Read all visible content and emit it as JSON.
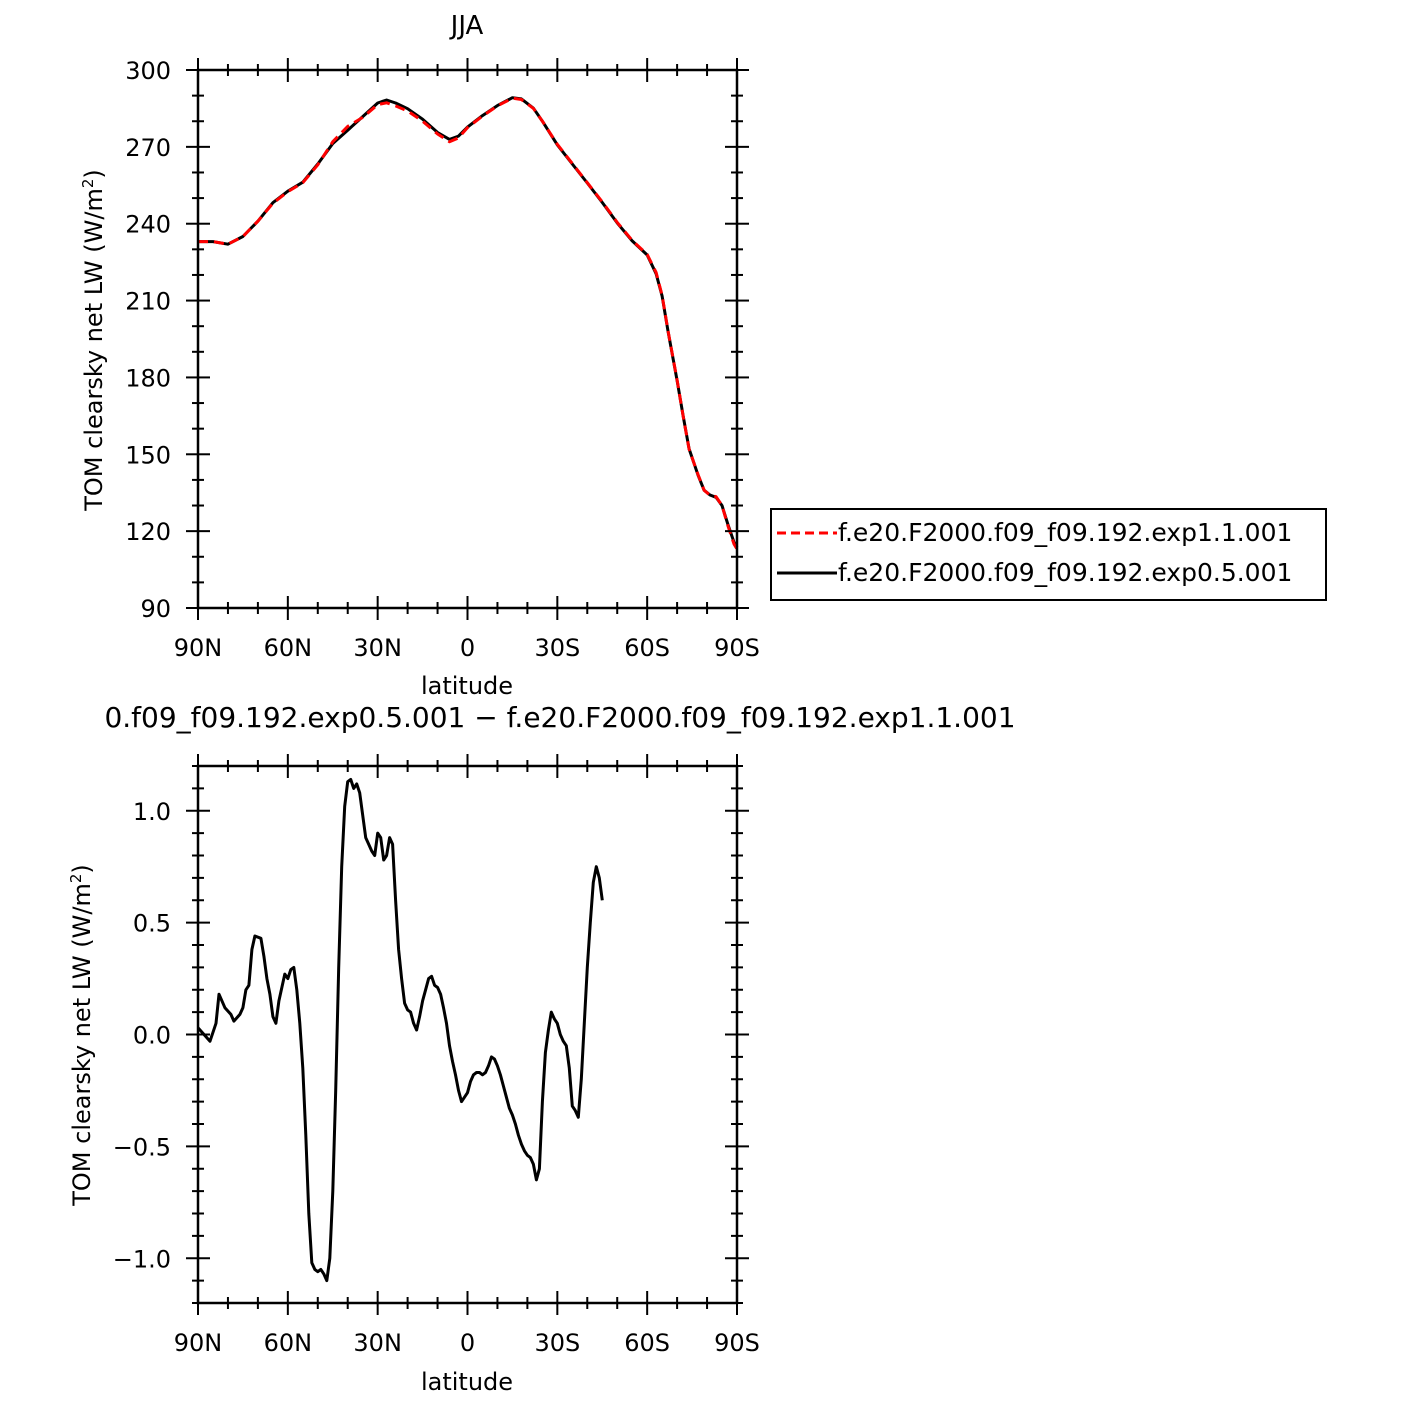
{
  "chart_data": [
    {
      "type": "line",
      "title": "JJA",
      "xlabel": "latitude",
      "ylabel": "TOM clearsky net LW (W/m²)",
      "ylabel_main": "TOM clearsky net LW (W/m",
      "ylabel_sup": "2",
      "ylabel_end": ")",
      "xlim": [
        90,
        -90
      ],
      "ylim": [
        90,
        300
      ],
      "x_ticks": [
        90,
        60,
        30,
        0,
        -30,
        -60,
        -90
      ],
      "x_tick_labels": [
        "90N",
        "60N",
        "30N",
        "0",
        "30S",
        "60S",
        "90S"
      ],
      "y_ticks": [
        90,
        120,
        150,
        180,
        210,
        240,
        270,
        300
      ],
      "y_tick_labels": [
        "90",
        "120",
        "150",
        "180",
        "210",
        "240",
        "270",
        "300"
      ],
      "legend": "right, outside",
      "series": [
        {
          "name": "f.e20.F2000.f09_f09.192.exp1.1.001",
          "color": "#ff0000",
          "style": "dashed",
          "points": [
            [
              90,
              233
            ],
            [
              85,
              233
            ],
            [
              80,
              232
            ],
            [
              75,
              235
            ],
            [
              70,
              241
            ],
            [
              65,
              248
            ],
            [
              60,
              252.5
            ],
            [
              55,
              256
            ],
            [
              50,
              263
            ],
            [
              45,
              272
            ],
            [
              40,
              278
            ],
            [
              35,
              281.5
            ],
            [
              30,
              286.5
            ],
            [
              27,
              287.2
            ],
            [
              24,
              286
            ],
            [
              20,
              284
            ],
            [
              15,
              280
            ],
            [
              10,
              275
            ],
            [
              6,
              272
            ],
            [
              3,
              273.5
            ],
            [
              0,
              277.5
            ],
            [
              -5,
              282
            ],
            [
              -10,
              286
            ],
            [
              -15,
              289
            ],
            [
              -18,
              288.5
            ],
            [
              -22,
              285
            ],
            [
              -25,
              280
            ],
            [
              -30,
              271
            ],
            [
              -35,
              263.5
            ],
            [
              -40,
              256
            ],
            [
              -45,
              248.5
            ],
            [
              -50,
              240.5
            ],
            [
              -55,
              233.5
            ],
            [
              -60,
              228
            ],
            [
              -63,
              221
            ],
            [
              -65,
              212
            ],
            [
              -67,
              198
            ],
            [
              -70,
              179
            ],
            [
              -72,
              165
            ],
            [
              -74,
              152
            ],
            [
              -77,
              142
            ],
            [
              -79,
              136
            ],
            [
              -81,
              134
            ],
            [
              -83,
              133.5
            ],
            [
              -85,
              130
            ],
            [
              -87,
              122
            ],
            [
              -89,
              115
            ],
            [
              -90,
              113
            ]
          ]
        },
        {
          "name": "f.e20.F2000.f09_f09.192.exp0.5.001",
          "color": "#000000",
          "style": "solid",
          "points": [
            [
              90,
              233
            ],
            [
              85,
              233
            ],
            [
              80,
              232
            ],
            [
              75,
              235
            ],
            [
              70,
              241
            ],
            [
              65,
              248.2
            ],
            [
              60,
              252.7
            ],
            [
              55,
              256.2
            ],
            [
              50,
              263.3
            ],
            [
              45,
              271.3
            ],
            [
              40,
              276.5
            ],
            [
              35,
              281.8
            ],
            [
              30,
              287.1
            ],
            [
              27,
              288.3
            ],
            [
              24,
              287.1
            ],
            [
              20,
              284.9
            ],
            [
              15,
              280.8
            ],
            [
              10,
              275.6
            ],
            [
              6,
              272.9
            ],
            [
              3,
              274.2
            ],
            [
              0,
              277.7
            ],
            [
              -5,
              282.2
            ],
            [
              -10,
              286.1
            ],
            [
              -15,
              289.2
            ],
            [
              -18,
              288.7
            ],
            [
              -22,
              285.1
            ],
            [
              -25,
              280
            ],
            [
              -30,
              270.8
            ],
            [
              -35,
              263.3
            ],
            [
              -40,
              255.9
            ],
            [
              -45,
              248.3
            ],
            [
              -50,
              240.3
            ],
            [
              -55,
              233.3
            ],
            [
              -60,
              227.8
            ],
            [
              -63,
              220.5
            ],
            [
              -65,
              211.8
            ],
            [
              -67,
              197.9
            ],
            [
              -70,
              178.8
            ],
            [
              -72,
              165.1
            ],
            [
              -74,
              152.1
            ],
            [
              -77,
              141.8
            ],
            [
              -79,
              136
            ],
            [
              -81,
              134.1
            ],
            [
              -83,
              133.2
            ],
            [
              -85,
              130
            ],
            [
              -87,
              122.5
            ],
            [
              -89,
              115.7
            ],
            [
              -90,
              113.7
            ]
          ]
        }
      ]
    },
    {
      "type": "line",
      "title": "0.f09_f09.192.exp0.5.001  −  f.e20.F2000.f09_f09.192.exp1.1.001",
      "xlabel": "latitude",
      "ylabel": "TOM clearsky net LW (W/m²)",
      "ylabel_main": "TOM clearsky net LW (W/m",
      "ylabel_sup": "2",
      "ylabel_end": ")",
      "xlim": [
        90,
        -90
      ],
      "ylim": [
        -1.2,
        1.2
      ],
      "x_ticks": [
        90,
        60,
        30,
        0,
        -30,
        -60,
        -90
      ],
      "x_tick_labels": [
        "90N",
        "60N",
        "30N",
        "0",
        "30S",
        "60S",
        "90S"
      ],
      "y_ticks": [
        -1.0,
        -0.5,
        0.0,
        0.5,
        1.0
      ],
      "y_tick_labels": [
        "−1.0",
        "−0.5",
        "0.0",
        "0.5",
        "1.0"
      ],
      "series": [
        {
          "name": "",
          "color": "#000000",
          "style": "solid",
          "points": [
            [
              90,
              0.03
            ],
            [
              88,
              0.0
            ],
            [
              86,
              -0.03
            ],
            [
              84,
              0.05
            ],
            [
              83,
              0.18
            ],
            [
              81,
              0.12
            ],
            [
              79,
              0.09
            ],
            [
              78,
              0.06
            ],
            [
              76,
              0.09
            ],
            [
              75,
              0.12
            ],
            [
              74,
              0.2
            ],
            [
              73,
              0.22
            ],
            [
              72,
              0.38
            ],
            [
              71,
              0.44
            ],
            [
              69,
              0.43
            ],
            [
              68,
              0.35
            ],
            [
              67,
              0.25
            ],
            [
              66,
              0.18
            ],
            [
              65,
              0.08
            ],
            [
              64,
              0.05
            ],
            [
              63,
              0.15
            ],
            [
              61,
              0.27
            ],
            [
              60,
              0.25
            ],
            [
              59,
              0.29
            ],
            [
              58,
              0.3
            ],
            [
              57,
              0.2
            ],
            [
              56,
              0.05
            ],
            [
              55,
              -0.15
            ],
            [
              54,
              -0.45
            ],
            [
              53,
              -0.8
            ],
            [
              52,
              -1.02
            ],
            [
              51,
              -1.05
            ],
            [
              50,
              -1.06
            ],
            [
              49,
              -1.05
            ],
            [
              48,
              -1.07
            ],
            [
              47,
              -1.1
            ],
            [
              46,
              -1.0
            ],
            [
              45,
              -0.7
            ],
            [
              44,
              -0.25
            ],
            [
              43,
              0.3
            ],
            [
              42,
              0.75
            ],
            [
              41,
              1.02
            ],
            [
              40,
              1.13
            ],
            [
              39,
              1.14
            ],
            [
              38,
              1.1
            ],
            [
              37,
              1.12
            ],
            [
              36,
              1.08
            ],
            [
              35,
              0.98
            ],
            [
              34,
              0.88
            ],
            [
              33,
              0.85
            ],
            [
              32,
              0.82
            ],
            [
              31,
              0.8
            ],
            [
              30,
              0.9
            ],
            [
              29,
              0.88
            ],
            [
              28,
              0.78
            ],
            [
              27,
              0.8
            ],
            [
              26,
              0.88
            ],
            [
              25,
              0.85
            ],
            [
              24,
              0.6
            ],
            [
              23,
              0.38
            ],
            [
              22,
              0.25
            ],
            [
              21,
              0.14
            ],
            [
              20,
              0.11
            ],
            [
              19,
              0.1
            ],
            [
              18,
              0.05
            ],
            [
              17,
              0.02
            ],
            [
              16,
              0.08
            ],
            [
              15,
              0.15
            ],
            [
              14,
              0.2
            ],
            [
              13,
              0.25
            ],
            [
              12,
              0.26
            ],
            [
              11,
              0.22
            ],
            [
              10,
              0.21
            ],
            [
              9,
              0.18
            ],
            [
              8,
              0.12
            ],
            [
              7,
              0.05
            ],
            [
              6,
              -0.05
            ],
            [
              5,
              -0.12
            ],
            [
              4,
              -0.18
            ],
            [
              3,
              -0.25
            ],
            [
              2,
              -0.3
            ],
            [
              1,
              -0.28
            ],
            [
              0,
              -0.26
            ],
            [
              -1,
              -0.21
            ],
            [
              -2,
              -0.18
            ],
            [
              -3,
              -0.17
            ],
            [
              -4,
              -0.17
            ],
            [
              -5,
              -0.18
            ],
            [
              -6,
              -0.17
            ],
            [
              -7,
              -0.14
            ],
            [
              -8,
              -0.1
            ],
            [
              -9,
              -0.11
            ],
            [
              -10,
              -0.14
            ],
            [
              -11,
              -0.18
            ],
            [
              -12,
              -0.23
            ],
            [
              -13,
              -0.28
            ],
            [
              -14,
              -0.33
            ],
            [
              -15,
              -0.36
            ],
            [
              -16,
              -0.4
            ],
            [
              -17,
              -0.45
            ],
            [
              -18,
              -0.49
            ],
            [
              -19,
              -0.52
            ],
            [
              -20,
              -0.54
            ],
            [
              -21,
              -0.55
            ],
            [
              -22,
              -0.58
            ],
            [
              -23,
              -0.65
            ],
            [
              -24,
              -0.6
            ],
            [
              -25,
              -0.3
            ],
            [
              -26,
              -0.08
            ],
            [
              -27,
              0.02
            ],
            [
              -28,
              0.1
            ],
            [
              -29,
              0.07
            ],
            [
              -30,
              0.05
            ],
            [
              -31,
              0.0
            ],
            [
              -32,
              -0.03
            ],
            [
              -33,
              -0.05
            ],
            [
              -34,
              -0.15
            ],
            [
              -35,
              -0.32
            ],
            [
              -36,
              -0.34
            ],
            [
              -37,
              -0.37
            ],
            [
              -38,
              -0.2
            ],
            [
              -39,
              0.05
            ],
            [
              -40,
              0.3
            ],
            [
              -41,
              0.5
            ],
            [
              -42,
              0.68
            ],
            [
              -43,
              0.75
            ],
            [
              -44,
              0.7
            ],
            [
              -45,
              0.6
            ]
          ]
        }
      ]
    }
  ]
}
